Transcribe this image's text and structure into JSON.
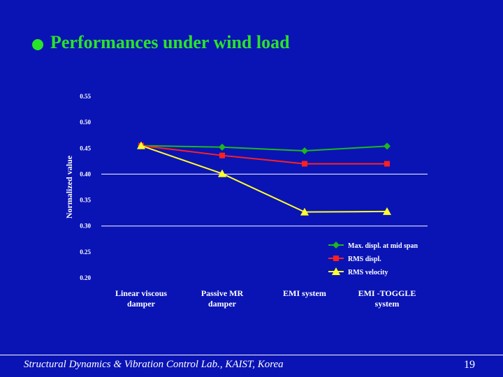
{
  "slide": {
    "title": "Performances under wind load",
    "footer": "Structural Dynamics & Vibration Control Lab., KAIST, Korea",
    "page_number": "19",
    "colors": {
      "background": "#0a14b4",
      "title": "#29e329",
      "text": "#ffffff"
    }
  },
  "chart_data": {
    "type": "line",
    "title": "",
    "xlabel": "",
    "ylabel": "Normalized value",
    "categories": [
      [
        "Linear viscous",
        "damper"
      ],
      [
        "Passive MR",
        "damper"
      ],
      [
        "EMI system"
      ],
      [
        "EMI -TOGGLE",
        "system"
      ]
    ],
    "ylim": [
      0.2,
      0.55
    ],
    "yticks": [
      "0.20",
      "0.25",
      "0.30",
      "0.35",
      "0.40",
      "0.45",
      "0.50",
      "0.55"
    ],
    "grid": "horizontal",
    "legend_position": "bottom-right",
    "series": [
      {
        "name": "Max. displ. at mid span",
        "color": "#1db81d",
        "marker": "diamond",
        "values": [
          0.455,
          0.452,
          0.445,
          0.454
        ]
      },
      {
        "name": "RMS displ.",
        "color": "#ff2020",
        "marker": "square",
        "values": [
          0.455,
          0.436,
          0.42,
          0.42
        ]
      },
      {
        "name": "RMS velocity",
        "color": "#ffff2a",
        "marker": "triangle",
        "values": [
          0.455,
          0.401,
          0.327,
          0.328
        ]
      }
    ]
  }
}
